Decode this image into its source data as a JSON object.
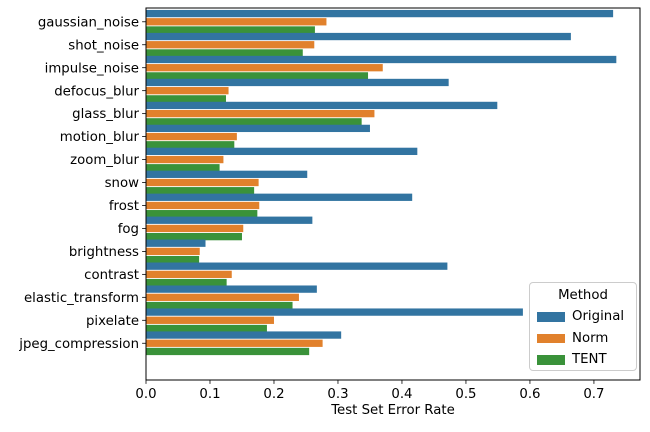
{
  "chart_data": {
    "type": "bar",
    "orientation": "horizontal",
    "title": "",
    "xlabel": "Test Set Error Rate",
    "ylabel": "",
    "xlim": [
      0.0,
      0.772
    ],
    "x_ticks": [
      0.0,
      0.1,
      0.2,
      0.3,
      0.4,
      0.5,
      0.6,
      0.7
    ],
    "grid": false,
    "categories": [
      "gaussian_noise",
      "shot_noise",
      "impulse_noise",
      "defocus_blur",
      "glass_blur",
      "motion_blur",
      "zoom_blur",
      "snow",
      "frost",
      "fog",
      "brightness",
      "contrast",
      "elastic_transform",
      "pixelate",
      "jpeg_compression"
    ],
    "series": [
      {
        "name": "Original",
        "color": "#3274a1",
        "values": [
          0.73,
          0.664,
          0.735,
          0.473,
          0.549,
          0.35,
          0.424,
          0.252,
          0.416,
          0.26,
          0.093,
          0.471,
          0.267,
          0.589,
          0.305
        ]
      },
      {
        "name": "Norm",
        "color": "#e1812c",
        "values": [
          0.282,
          0.263,
          0.37,
          0.129,
          0.357,
          0.142,
          0.121,
          0.176,
          0.177,
          0.152,
          0.084,
          0.134,
          0.239,
          0.2,
          0.276
        ]
      },
      {
        "name": "TENT",
        "color": "#3a923a",
        "values": [
          0.264,
          0.245,
          0.347,
          0.125,
          0.337,
          0.138,
          0.115,
          0.169,
          0.174,
          0.15,
          0.083,
          0.126,
          0.229,
          0.189,
          0.255
        ]
      }
    ],
    "legend": {
      "title": "Method",
      "position": "lower right"
    }
  }
}
